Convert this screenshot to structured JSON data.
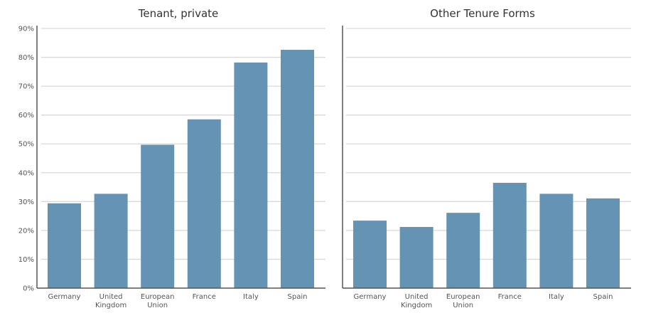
{
  "chart_data": [
    {
      "type": "bar",
      "title": "Tenant, private",
      "categories": [
        "Germany",
        "United Kingdom",
        "European Union",
        "France",
        "Italy",
        "Spain"
      ],
      "category_lines": [
        [
          "Germany"
        ],
        [
          "United",
          "Kingdom"
        ],
        [
          "European",
          "Union"
        ],
        [
          "France"
        ],
        [
          "Italy"
        ],
        [
          "Spain"
        ]
      ],
      "values": [
        29.4,
        32.7,
        49.7,
        58.5,
        78.2,
        82.6
      ],
      "ylim": [
        0,
        90
      ],
      "yticks": [
        0,
        10,
        20,
        30,
        40,
        50,
        60,
        70,
        80,
        90
      ],
      "ytick_labels": [
        "0%",
        "10%",
        "20%",
        "30%",
        "40%",
        "50%",
        "60%",
        "70%",
        "80%",
        "90%"
      ],
      "grid": true,
      "bar_color": "#6593b4"
    },
    {
      "type": "bar",
      "title": "Other Tenure Forms",
      "categories": [
        "Germany",
        "United Kingdom",
        "European Union",
        "France",
        "Italy",
        "Spain"
      ],
      "category_lines": [
        [
          "Germany"
        ],
        [
          "United",
          "Kingdom"
        ],
        [
          "European",
          "Union"
        ],
        [
          "France"
        ],
        [
          "Italy"
        ],
        [
          "Spain"
        ]
      ],
      "values": [
        23.4,
        21.2,
        26.1,
        36.5,
        32.7,
        31.1
      ],
      "ylim": [
        0,
        90
      ],
      "yticks": [
        0,
        10,
        20,
        30,
        40,
        50,
        60,
        70,
        80,
        90
      ],
      "grid": true,
      "bar_color": "#6593b4"
    }
  ]
}
